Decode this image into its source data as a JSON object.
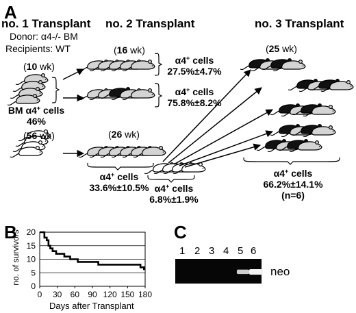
{
  "panels": {
    "a": "A",
    "b": "B",
    "c": "C"
  },
  "panel_a": {
    "col1": {
      "title": "no. 1 Transplant",
      "donor": "Donor:  α4-/- BM",
      "recipients": "Recipients: WT",
      "group1_weeks": "10",
      "bm_label": "BM α4",
      "bm_value": "46%",
      "group2_weeks": "56"
    },
    "col2": {
      "title": "no. 2 Transplant",
      "group1_weeks": "16",
      "stat1_label": "α4",
      "stat1_value": "27.5%±4.7%",
      "stat2_label": "α4",
      "stat2_value": "75.8%±8.2%",
      "group2_weeks": "26",
      "stat3_label": "α4",
      "stat3_value": "33.6%±10.5%",
      "stat4_label": "α4",
      "stat4_value": "6.8%±1.9%"
    },
    "col3": {
      "title": "no. 3 Transplant",
      "weeks": "25",
      "stat_label": "α4",
      "stat_value": "66.2%±14.1%",
      "n": "(n=6)"
    },
    "superscript": "+",
    "cells_word": "cells",
    "wk_unit": "wk",
    "colors": {
      "mouse_light": "#d4d4d4",
      "mouse_dark": "#111111"
    }
  },
  "chart_data": {
    "type": "line",
    "title": "",
    "xlabel": "Days after Transplant",
    "ylabel": "no. of survivors",
    "xlim": [
      0,
      180
    ],
    "ylim": [
      0,
      20
    ],
    "xticks": [
      "0",
      "30",
      "60",
      "90",
      "120",
      "150",
      "180"
    ],
    "yticks": [
      "0",
      "5",
      "10",
      "15",
      "20"
    ],
    "grid": "horizontal",
    "series": [
      {
        "step": true,
        "x": [
          0,
          5,
          8,
          12,
          15,
          18,
          22,
          28,
          35,
          42,
          52,
          65,
          80,
          100,
          120,
          150,
          165,
          172,
          178
        ],
        "y": [
          20,
          20,
          18,
          17,
          15,
          14,
          13,
          12,
          12,
          11,
          10,
          9,
          9,
          8,
          8,
          8,
          8,
          7,
          6
        ]
      }
    ]
  },
  "panel_c": {
    "lanes": [
      "1",
      "2",
      "3",
      "4",
      "5",
      "6"
    ],
    "band_label": "neo",
    "bands": [
      0,
      0,
      0,
      0,
      0.7,
      1.0
    ],
    "colors": {
      "gel": "#060606",
      "band": "#f2f2f2"
    }
  }
}
